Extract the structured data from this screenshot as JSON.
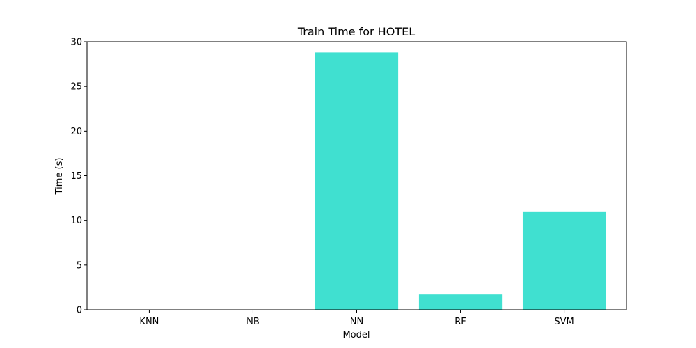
{
  "chart_data": {
    "type": "bar",
    "title": "Train Time for HOTEL",
    "xlabel": "Model",
    "ylabel": "Time (s)",
    "categories": [
      "KNN",
      "NB",
      "NN",
      "RF",
      "SVM"
    ],
    "values": [
      0.01,
      0.01,
      28.8,
      1.7,
      11.0
    ],
    "ylim": [
      0,
      30
    ],
    "yticks": [
      0,
      5,
      10,
      15,
      20,
      25,
      30
    ],
    "bar_color": "#40e0d0",
    "grid": false,
    "legend": "none"
  }
}
